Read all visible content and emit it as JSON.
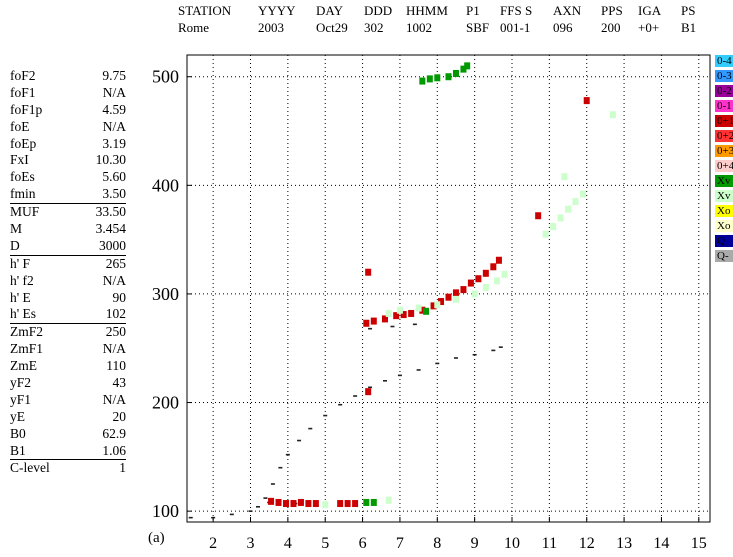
{
  "header": [
    {
      "label": "STATION",
      "value": "Rome"
    },
    {
      "label": "YYYY",
      "value": "2003"
    },
    {
      "label": "DAY",
      "value": "Oct29"
    },
    {
      "label": "DDD",
      "value": "302"
    },
    {
      "label": "HHMM",
      "value": "1002"
    },
    {
      "label": "P1",
      "value": "SBF"
    },
    {
      "label": "FFS S",
      "value": "001-1"
    },
    {
      "label": "AXN",
      "value": "096"
    },
    {
      "label": "PPS",
      "value": "200"
    },
    {
      "label": "IGA",
      "value": "+0+"
    },
    {
      "label": "PS",
      "value": "B1"
    }
  ],
  "params": [
    {
      "name": "foF2",
      "value": "9.75"
    },
    {
      "name": "foF1",
      "value": "N/A"
    },
    {
      "name": "foF1p",
      "value": "4.59"
    },
    {
      "name": "foE",
      "value": "N/A"
    },
    {
      "name": "foEp",
      "value": "3.19"
    },
    {
      "name": "FxI",
      "value": "10.30"
    },
    {
      "name": "foEs",
      "value": "5.60"
    },
    {
      "name": "fmin",
      "value": "3.50"
    },
    {
      "name": "MUF",
      "value": "33.50"
    },
    {
      "name": "M",
      "value": "3.454"
    },
    {
      "name": "D",
      "value": "3000"
    },
    {
      "name": "h' F",
      "value": "265"
    },
    {
      "name": "h' f2",
      "value": "N/A"
    },
    {
      "name": "h' E",
      "value": "90"
    },
    {
      "name": "h' Es",
      "value": "102"
    },
    {
      "name": "ZmF2",
      "value": "250"
    },
    {
      "name": "ZmF1",
      "value": "N/A"
    },
    {
      "name": "ZmE",
      "value": "110"
    },
    {
      "name": "yF2",
      "value": "43"
    },
    {
      "name": "yF1",
      "value": "N/A"
    },
    {
      "name": "yE",
      "value": "20"
    },
    {
      "name": "B0",
      "value": "62.9"
    },
    {
      "name": "B1",
      "value": "1.06"
    },
    {
      "name": "C-level",
      "value": "1"
    }
  ],
  "panel_label": "(a)",
  "legend": [
    {
      "label": "0-4",
      "color": "#33ccff"
    },
    {
      "label": "0-3",
      "color": "#3399ff"
    },
    {
      "label": "0-2",
      "color": "#990099"
    },
    {
      "label": "0-1",
      "color": "#ff33cc"
    },
    {
      "label": "0+1",
      "color": "#cc0000"
    },
    {
      "label": "0+2",
      "color": "#ff3333"
    },
    {
      "label": "0+3",
      "color": "#ff9900"
    },
    {
      "label": "0+4",
      "color": "#ffcccc"
    },
    {
      "label": "Xv",
      "color": "#009900"
    },
    {
      "label": "Xv",
      "color": "#ccffcc"
    },
    {
      "label": "Xo",
      "color": "#ffff00"
    },
    {
      "label": "Xo",
      "color": "#ffffcc"
    },
    {
      "label": "Q",
      "color": "#000099"
    },
    {
      "label": "Q-",
      "color": "#aaaaaa"
    }
  ],
  "chart_data": {
    "type": "scatter",
    "title": "",
    "xlabel": "",
    "ylabel": "",
    "xlim": [
      1.3,
      15.3
    ],
    "ylim": [
      90,
      520
    ],
    "xticks": [
      2,
      3,
      4,
      5,
      6,
      7,
      8,
      9,
      10,
      11,
      12,
      13,
      14,
      15
    ],
    "yticks": [
      100,
      200,
      300,
      400,
      500
    ],
    "grid": true,
    "series": [
      {
        "name": "Q-",
        "color": "#222222",
        "marker": "dash",
        "points": [
          [
            1.4,
            94
          ],
          [
            2.0,
            94
          ],
          [
            2.5,
            97
          ],
          [
            3.0,
            100
          ],
          [
            3.2,
            104
          ],
          [
            3.4,
            112
          ],
          [
            3.6,
            125
          ],
          [
            3.8,
            140
          ],
          [
            4.0,
            152
          ],
          [
            4.3,
            165
          ],
          [
            4.6,
            176
          ],
          [
            5.0,
            188
          ],
          [
            5.4,
            198
          ],
          [
            5.8,
            206
          ],
          [
            6.2,
            214
          ],
          [
            6.6,
            220
          ],
          [
            7.0,
            225
          ],
          [
            7.5,
            230
          ],
          [
            8.0,
            236
          ],
          [
            8.5,
            241
          ],
          [
            9.0,
            244
          ],
          [
            9.5,
            248
          ],
          [
            9.7,
            251
          ],
          [
            3.5,
            108
          ],
          [
            4.2,
            107
          ],
          [
            5.0,
            107
          ],
          [
            5.6,
            107
          ],
          [
            6.2,
            268
          ],
          [
            6.8,
            270
          ],
          [
            7.4,
            272
          ]
        ]
      },
      {
        "name": "0+1",
        "color": "#cc0000",
        "marker": "tick",
        "points": [
          [
            3.55,
            109
          ],
          [
            3.75,
            108
          ],
          [
            3.95,
            107
          ],
          [
            4.15,
            107
          ],
          [
            4.35,
            108
          ],
          [
            4.55,
            107
          ],
          [
            4.75,
            107
          ],
          [
            5.4,
            107
          ],
          [
            5.6,
            107
          ],
          [
            5.8,
            107
          ],
          [
            6.1,
            273
          ],
          [
            6.3,
            275
          ],
          [
            6.6,
            277
          ],
          [
            6.9,
            280
          ],
          [
            7.1,
            281
          ],
          [
            7.3,
            282
          ],
          [
            7.6,
            285
          ],
          [
            7.9,
            289
          ],
          [
            8.1,
            293
          ],
          [
            8.3,
            297
          ],
          [
            8.5,
            301
          ],
          [
            8.7,
            304
          ],
          [
            8.9,
            310
          ],
          [
            9.1,
            314
          ],
          [
            9.3,
            319
          ],
          [
            9.5,
            325
          ],
          [
            9.65,
            331
          ],
          [
            10.7,
            372
          ],
          [
            12.0,
            478
          ],
          [
            6.15,
            210
          ],
          [
            6.15,
            320
          ]
        ]
      },
      {
        "name": "Xv",
        "color": "#009900",
        "marker": "tick",
        "points": [
          [
            7.6,
            496
          ],
          [
            7.8,
            498
          ],
          [
            8.0,
            499
          ],
          [
            8.3,
            500
          ],
          [
            8.5,
            503
          ],
          [
            8.7,
            507
          ],
          [
            8.8,
            510
          ],
          [
            7.7,
            284
          ],
          [
            6.1,
            108
          ],
          [
            6.3,
            108
          ]
        ]
      },
      {
        "name": "Xv",
        "color": "#ccffcc",
        "marker": "tick",
        "points": [
          [
            6.7,
            282
          ],
          [
            7.0,
            285
          ],
          [
            7.5,
            287
          ],
          [
            8.0,
            290
          ],
          [
            8.5,
            295
          ],
          [
            9.0,
            300
          ],
          [
            9.3,
            306
          ],
          [
            9.6,
            312
          ],
          [
            9.8,
            318
          ],
          [
            10.9,
            355
          ],
          [
            11.1,
            362
          ],
          [
            11.3,
            370
          ],
          [
            11.5,
            378
          ],
          [
            11.7,
            385
          ],
          [
            11.9,
            392
          ],
          [
            11.4,
            408
          ],
          [
            12.7,
            465
          ],
          [
            6.7,
            110
          ],
          [
            5.0,
            106
          ]
        ]
      }
    ]
  }
}
